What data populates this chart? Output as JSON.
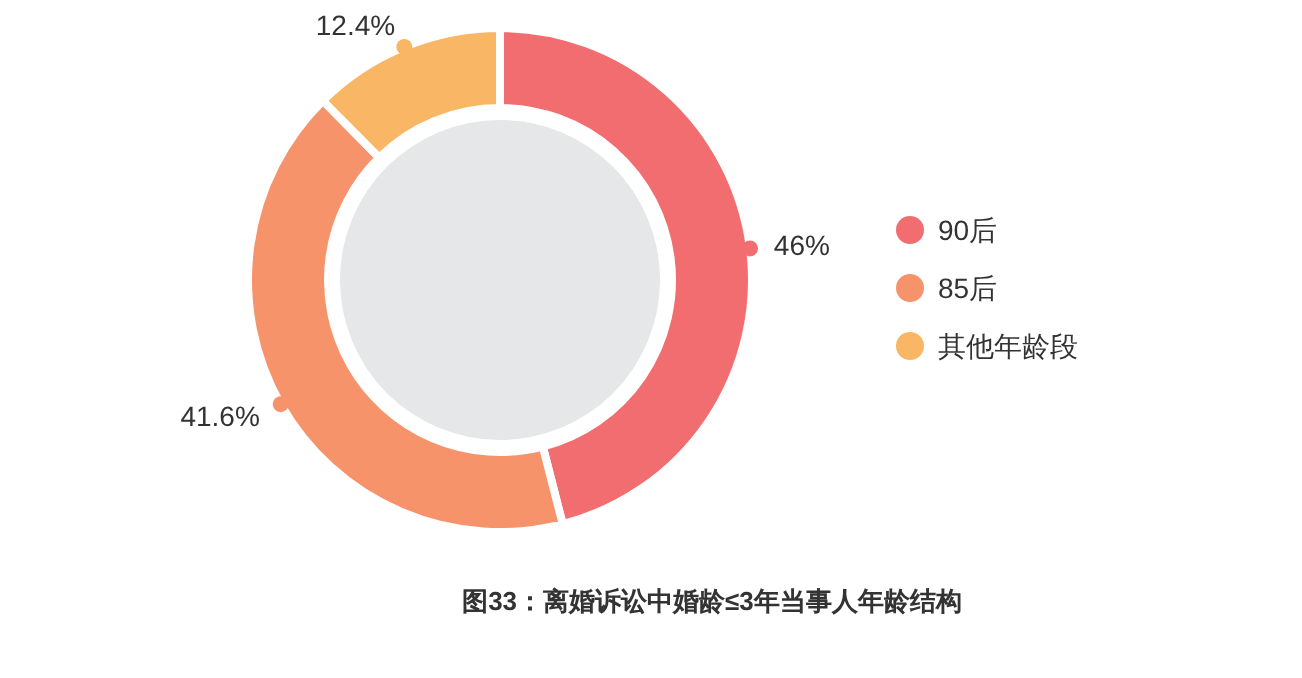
{
  "chart_data": {
    "type": "donut",
    "title": "图33：离婚诉讼中婚龄≤3年当事人年龄结构",
    "categories": [
      "90后",
      "85后",
      "其他年龄段"
    ],
    "values": [
      46,
      41.6,
      12.4
    ],
    "value_labels": [
      "46%",
      "41.6%",
      "12.4%"
    ],
    "colors": [
      "#f26d70",
      "#f7936b",
      "#f9b765"
    ],
    "legend": "right"
  }
}
